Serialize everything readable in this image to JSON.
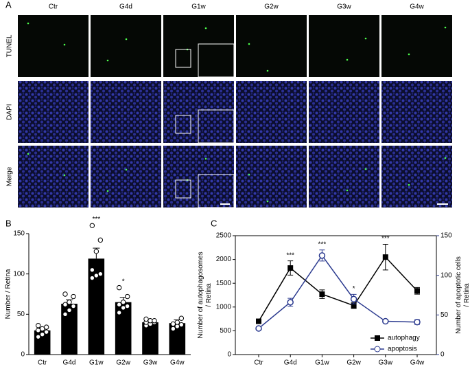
{
  "figure": {
    "panel_labels": [
      "A",
      "B",
      "C"
    ],
    "columns": [
      "Ctr",
      "G4d",
      "G1w",
      "G2w",
      "G3w",
      "G4w"
    ],
    "rows": [
      "TUNEL",
      "DAPI",
      "Merge"
    ]
  },
  "chart_data": [
    {
      "type": "bar",
      "ylabel": "Number / Retina",
      "categories": [
        "Ctr",
        "G4d",
        "G1w",
        "G2w",
        "G3w",
        "G4w"
      ],
      "values": [
        30,
        63,
        119,
        65,
        40,
        39
      ],
      "errors": [
        3,
        5,
        13,
        6,
        3,
        4
      ],
      "color": "#000000",
      "points": [
        [
          22,
          25,
          28,
          30,
          32,
          34,
          36
        ],
        [
          50,
          55,
          60,
          62,
          65,
          72,
          75
        ],
        [
          95,
          98,
          100,
          105,
          128,
          142,
          160
        ],
        [
          52,
          58,
          60,
          62,
          65,
          72,
          83
        ],
        [
          36,
          38,
          40,
          40,
          42,
          42,
          44
        ],
        [
          32,
          35,
          37,
          38,
          40,
          45
        ]
      ],
      "annotations": [
        {
          "text": "***",
          "x": "G1w"
        },
        {
          "text": "*",
          "x": "G2w"
        }
      ],
      "ylim": [
        0,
        150
      ],
      "yticks": [
        0,
        50,
        100,
        150
      ]
    },
    {
      "type": "line",
      "ylabel": "Number of autophagosomes / Retina",
      "y2label": "Number of apoptotic cells / Retina",
      "categories": [
        "Ctr",
        "G4d",
        "G1w",
        "G2w",
        "G3w",
        "G4w"
      ],
      "series": [
        {
          "name": "autophagy",
          "color": "#000000",
          "marker": "square",
          "values": [
            700,
            1820,
            1270,
            1030,
            2050,
            1340
          ],
          "errors": [
            40,
            150,
            90,
            60,
            270,
            70
          ]
        },
        {
          "name": "apoptosis",
          "color": "#2b3a8f",
          "marker": "open-circle",
          "axis": "y2",
          "values": [
            33,
            66,
            125,
            70,
            42,
            41
          ],
          "errors": [
            2,
            5,
            7,
            6,
            2,
            3
          ]
        }
      ],
      "annotations": [
        {
          "text": "***",
          "x": "G4d",
          "series": "autophagy"
        },
        {
          "text": "***",
          "x": "G1w",
          "series": "apoptosis"
        },
        {
          "text": "*",
          "x": "G2w",
          "series": "apoptosis"
        },
        {
          "text": "***",
          "x": "G3w",
          "series": "autophagy"
        }
      ],
      "ylim": [
        0,
        2500
      ],
      "yticks": [
        0,
        500,
        1000,
        1500,
        2000,
        2500
      ],
      "y2lim": [
        0,
        150
      ],
      "y2ticks": [
        0,
        50,
        100,
        150
      ],
      "legend": "lower right"
    }
  ]
}
